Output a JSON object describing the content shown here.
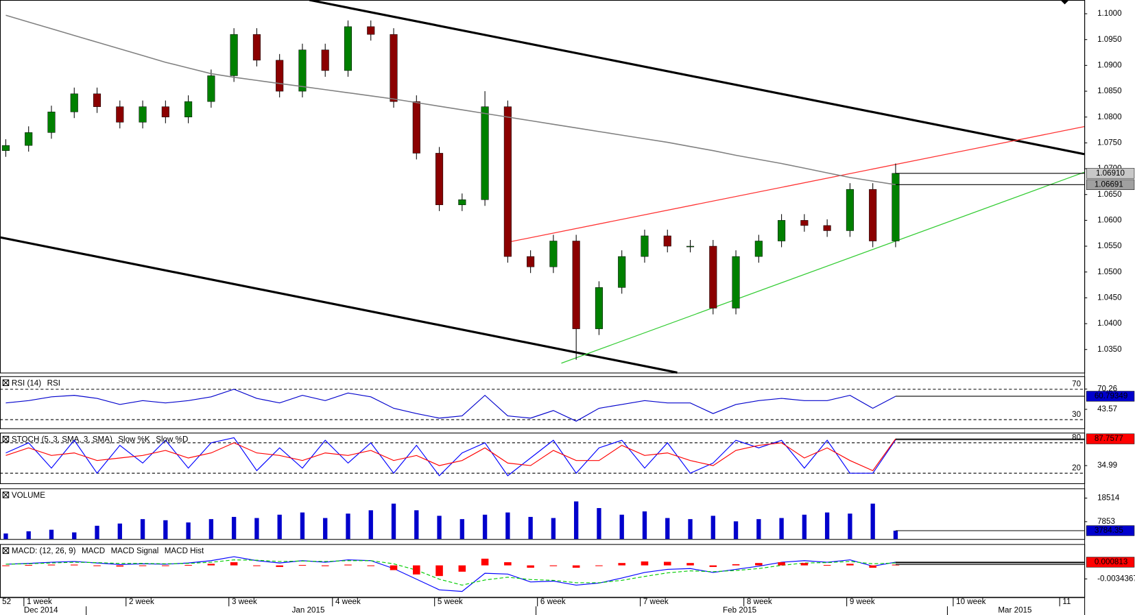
{
  "chart_data": [
    {
      "type": "candlestick",
      "name": "price",
      "open": [
        1.0735,
        1.0745,
        1.077,
        1.081,
        1.0845,
        1.082,
        1.079,
        1.082,
        1.08,
        1.083,
        1.088,
        1.096,
        1.091,
        1.085,
        1.093,
        1.089,
        1.0975,
        1.096,
        1.083,
        1.073,
        1.063,
        1.064,
        1.082,
        1.053,
        1.051,
        1.056,
        1.039,
        1.047,
        1.053,
        1.057,
        1.055,
        1.055,
        1.043,
        1.053,
        1.056,
        1.06,
        1.059,
        1.058,
        1.066,
        1.056
      ],
      "high": [
        1.0757,
        1.0782,
        1.0822,
        1.0857,
        1.0857,
        1.0832,
        1.0832,
        1.0832,
        1.0842,
        1.0892,
        1.0972,
        1.0972,
        1.0922,
        1.0942,
        1.0942,
        1.0987,
        1.0987,
        1.0972,
        1.0842,
        1.0742,
        1.0652,
        1.085,
        1.0832,
        1.0542,
        1.0572,
        1.0572,
        1.0482,
        1.0542,
        1.0582,
        1.0582,
        1.0562,
        1.0562,
        1.0542,
        1.0572,
        1.0612,
        1.0612,
        1.0602,
        1.0672,
        1.0672,
        1.071
      ],
      "low": [
        1.0723,
        1.0733,
        1.0758,
        1.0798,
        1.0808,
        1.0778,
        1.0778,
        1.0788,
        1.0788,
        1.0818,
        1.0868,
        1.0898,
        1.0838,
        1.0838,
        1.0878,
        1.0878,
        1.0948,
        1.0818,
        1.0718,
        1.0618,
        1.0618,
        1.0628,
        1.0518,
        1.0498,
        1.0498,
        1.033,
        1.0378,
        1.0458,
        1.0518,
        1.0538,
        1.0538,
        1.0418,
        1.0418,
        1.0518,
        1.0548,
        1.0578,
        1.0568,
        1.0568,
        1.0548,
        1.0548
      ],
      "close": [
        1.0745,
        1.077,
        1.081,
        1.0845,
        1.082,
        1.079,
        1.082,
        1.08,
        1.083,
        1.088,
        1.096,
        1.091,
        1.085,
        1.093,
        1.089,
        1.0975,
        1.096,
        1.083,
        1.073,
        1.063,
        1.064,
        1.082,
        1.053,
        1.051,
        1.056,
        1.039,
        1.047,
        1.053,
        1.057,
        1.055,
        1.055,
        1.043,
        1.053,
        1.056,
        1.06,
        1.059,
        1.058,
        1.066,
        1.056,
        1.0691
      ],
      "close_label": "1.06910",
      "up_color": "#008000",
      "down_color": "#8b0000",
      "ma": {
        "color": "#808080",
        "values": [
          1.0997,
          1.0984,
          1.0971,
          1.0958,
          1.0945,
          1.0932,
          1.0919,
          1.0906,
          1.0895,
          1.0884,
          1.0877,
          1.0871,
          1.0865,
          1.0859,
          1.0853,
          1.0847,
          1.0841,
          1.0835,
          1.0828,
          1.0821,
          1.0814,
          1.0807,
          1.08,
          1.0793,
          1.0786,
          1.0779,
          1.0772,
          1.0765,
          1.0758,
          1.0751,
          1.0743,
          1.0735,
          1.0726,
          1.0718,
          1.071,
          1.0701,
          1.0692,
          1.0683,
          1.0676,
          1.06691
        ]
      },
      "ylim": [
        1.03052,
        1.10266
      ],
      "yticks": [
        {
          "value": 1.035,
          "label": "1.0350"
        },
        {
          "value": 1.04,
          "label": "1.0400"
        },
        {
          "value": 1.045,
          "label": "1.0450"
        },
        {
          "value": 1.05,
          "label": "1.0500"
        },
        {
          "value": 1.055,
          "label": "1.0550"
        },
        {
          "value": 1.06,
          "label": "1.0600"
        },
        {
          "value": 1.065,
          "label": "1.0650"
        },
        {
          "value": 1.07,
          "label": "1.0700"
        },
        {
          "value": 1.075,
          "label": "1.0750"
        },
        {
          "value": 1.08,
          "label": "1.0800"
        },
        {
          "value": 1.085,
          "label": "1.0850"
        },
        {
          "value": 1.09,
          "label": "1.0900"
        },
        {
          "value": 1.095,
          "label": "1.0950"
        },
        {
          "value": 1.1,
          "label": "1.1000"
        }
      ]
    },
    {
      "type": "line",
      "name": "rsi",
      "title": "RSI (14)",
      "series": [
        {
          "name": "RSI",
          "color": "#0000cc",
          "values": [
            52,
            55,
            60,
            62,
            58,
            50,
            55,
            52,
            55,
            60,
            70,
            58,
            52,
            62,
            55,
            65,
            60,
            45,
            38,
            32,
            35,
            62,
            35,
            32,
            42,
            28,
            45,
            50,
            55,
            52,
            52,
            38,
            50,
            55,
            58,
            55,
            55,
            62,
            45,
            60.79349
          ]
        }
      ],
      "levels": [
        70,
        30
      ],
      "ylim": [
        18.6,
        87.1
      ],
      "yticks": [
        70.26,
        43.57
      ]
    },
    {
      "type": "line",
      "name": "stoch",
      "title": "STOCH (5, 3, SMA, 3, SMA)",
      "series": [
        {
          "name": "Slow %K",
          "color": "#0000ff",
          "values": [
            60,
            80,
            30,
            85,
            20,
            75,
            40,
            85,
            30,
            80,
            90,
            25,
            70,
            30,
            85,
            40,
            80,
            20,
            75,
            15,
            60,
            80,
            15,
            50,
            85,
            20,
            70,
            85,
            30,
            80,
            20,
            40,
            85,
            70,
            85,
            30,
            85,
            20,
            20,
            86
          ]
        },
        {
          "name": "Slow %D",
          "color": "#ff0000",
          "values": [
            55,
            70,
            55,
            60,
            45,
            50,
            55,
            65,
            50,
            60,
            80,
            60,
            55,
            45,
            60,
            55,
            65,
            45,
            55,
            35,
            45,
            70,
            40,
            35,
            65,
            45,
            45,
            75,
            55,
            60,
            45,
            35,
            65,
            75,
            80,
            50,
            70,
            45,
            25,
            87.7577
          ]
        }
      ],
      "levels": [
        80,
        20
      ],
      "ylim": [
        0,
        100
      ],
      "yticks": [
        34.99
      ]
    },
    {
      "type": "bar",
      "name": "volume",
      "title": "VOLUME",
      "color": "#0000cc",
      "values": [
        2500,
        3500,
        4200,
        3000,
        6000,
        7000,
        9000,
        8500,
        7500,
        9000,
        10000,
        9500,
        11000,
        12000,
        9500,
        11500,
        13000,
        16000,
        13000,
        10500,
        9000,
        11000,
        12000,
        10000,
        9500,
        17000,
        14000,
        11000,
        12500,
        9500,
        9000,
        10500,
        8000,
        9000,
        9500,
        11000,
        12000,
        11500,
        16000,
        3784.35
      ],
      "ylim": [
        0,
        22900
      ],
      "yticks": [
        18514,
        7853
      ]
    },
    {
      "type": "macd",
      "name": "macd",
      "title": "MACD: (12, 26, 9)",
      "series": [
        {
          "name": "MACD",
          "color": "#0000ff",
          "values": [
            0.0003,
            0.0005,
            0.0008,
            0.001,
            0.0006,
            0.0002,
            0.0004,
            0.0003,
            0.0006,
            0.0012,
            0.0022,
            0.0012,
            0.0006,
            0.0012,
            0.0008,
            0.0014,
            0.0012,
            -0.0008,
            -0.0035,
            -0.0062,
            -0.0066,
            -0.002,
            -0.0022,
            -0.0042,
            -0.004,
            -0.005,
            -0.0045,
            -0.0032,
            -0.0018,
            -0.001,
            -0.0008,
            -0.0018,
            -0.001,
            -0.0002,
            0.0008,
            0.0012,
            0.0008,
            0.0014,
            -0.0002,
            0.000813
          ]
        },
        {
          "name": "MACD Signal",
          "color": "#00cc00",
          "values": [
            0.0003,
            0.0004,
            0.0006,
            0.0008,
            0.0007,
            0.0005,
            0.0005,
            0.0004,
            0.0005,
            0.0008,
            0.0014,
            0.0013,
            0.001,
            0.0011,
            0.001,
            0.0012,
            0.0012,
            0.0004,
            -0.0012,
            -0.0035,
            -0.005,
            -0.0037,
            -0.003,
            -0.0036,
            -0.0038,
            -0.0044,
            -0.0044,
            -0.0038,
            -0.0028,
            -0.0019,
            -0.0014,
            -0.0016,
            -0.0013,
            -0.0008,
            0.0,
            0.0006,
            0.0007,
            0.001,
            0.0004,
            0.0006
          ]
        },
        {
          "name": "MACD Hist",
          "color": "#ff0000",
          "values": [
            0,
            0.0001,
            0.0002,
            0.0002,
            -0.0001,
            -0.0003,
            -0.0001,
            -0.0001,
            0.0001,
            0.0004,
            0.0008,
            -0.0001,
            -0.0004,
            0.0001,
            -0.0002,
            0.0002,
            0,
            -0.0012,
            -0.0023,
            -0.0027,
            -0.0016,
            0.0017,
            0.0008,
            -0.0006,
            -0.0002,
            -0.0006,
            -0.0001,
            0.0006,
            0.001,
            0.0009,
            0.0006,
            -0.0004,
            0.0003,
            0.0006,
            0.0008,
            0.0006,
            0.0001,
            0.0004,
            -0.0006,
            0.0002
          ]
        }
      ],
      "ylim": [
        -0.008,
        0.0054
      ],
      "yticks": [
        -0.0034367
      ]
    }
  ],
  "time_axis": {
    "weeks": [
      "52",
      "1 week",
      "2 week",
      "3 week",
      "4 week",
      "5 week",
      "6 week",
      "7 week",
      "8 week",
      "9 week",
      "10 week",
      "11"
    ],
    "months": [
      "Dec 2014",
      "Jan 2015",
      "Feb 2015",
      "Mar 2015"
    ]
  }
}
